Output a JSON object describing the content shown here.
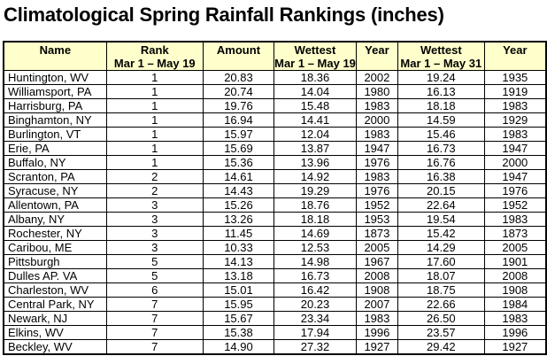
{
  "title": "Climatological Spring Rainfall Rankings (inches)",
  "colors": {
    "header_bg": "#FFFFCC",
    "border": "#000000",
    "background": "#FFFFFF",
    "text": "#000000"
  },
  "chart_data": {
    "type": "table",
    "title": "Climatological Spring Rainfall Rankings (inches)",
    "columns": [
      {
        "label": "Name",
        "sublabel": ""
      },
      {
        "label": "Rank",
        "sublabel": "Mar 1 – May 19"
      },
      {
        "label": "Amount",
        "sublabel": ""
      },
      {
        "label": "Wettest",
        "sublabel": "Mar 1 – May 19"
      },
      {
        "label": "Year",
        "sublabel": ""
      },
      {
        "label": "Wettest",
        "sublabel": "Mar 1 – May 31"
      },
      {
        "label": "Year",
        "sublabel": ""
      }
    ],
    "rows": [
      [
        "Huntington, WV",
        "1",
        "20.83",
        "18.36",
        "2002",
        "19.24",
        "1935"
      ],
      [
        "Williamsport, PA",
        "1",
        "20.74",
        "14.04",
        "1980",
        "16.13",
        "1919"
      ],
      [
        "Harrisburg, PA",
        "1",
        "19.76",
        "15.48",
        "1983",
        "18.18",
        "1983"
      ],
      [
        "Binghamton, NY",
        "1",
        "16.94",
        "14.41",
        "2000",
        "14.59",
        "1929"
      ],
      [
        "Burlington, VT",
        "1",
        "15.97",
        "12.04",
        "1983",
        "15.46",
        "1983"
      ],
      [
        "Erie, PA",
        "1",
        "15.69",
        "13.87",
        "1947",
        "16.73",
        "1947"
      ],
      [
        "Buffalo, NY",
        "1",
        "15.36",
        "13.96",
        "1976",
        "16.76",
        "2000"
      ],
      [
        "Scranton, PA",
        "2",
        "14.61",
        "14.92",
        "1983",
        "16.38",
        "1947"
      ],
      [
        "Syracuse, NY",
        "2",
        "14.43",
        "19.29",
        "1976",
        "20.15",
        "1976"
      ],
      [
        "Allentown, PA",
        "3",
        "15.26",
        "18.76",
        "1952",
        "22.64",
        "1952"
      ],
      [
        "Albany, NY",
        "3",
        "13.26",
        "18.18",
        "1953",
        "19.54",
        "1983"
      ],
      [
        "Rochester, NY",
        "3",
        "11.45",
        "14.69",
        "1873",
        "15.42",
        "1873"
      ],
      [
        "Caribou, ME",
        "3",
        "10.33",
        "12.53",
        "2005",
        "14.29",
        "2005"
      ],
      [
        "Pittsburgh",
        "5",
        "14.13",
        "14.98",
        "1967",
        "17.60",
        "1901"
      ],
      [
        "Dulles AP. VA",
        "5",
        "13.18",
        "16.73",
        "2008",
        "18.07",
        "2008"
      ],
      [
        "Charleston, WV",
        "6",
        "15.01",
        "16.42",
        "1908",
        "18.75",
        "1908"
      ],
      [
        "Central Park, NY",
        "7",
        "15.95",
        "20.23",
        "2007",
        "22.66",
        "1984"
      ],
      [
        "Newark, NJ",
        "7",
        "15.67",
        "23.34",
        "1983",
        "26.50",
        "1983"
      ],
      [
        "Elkins, WV",
        "7",
        "15.38",
        "17.94",
        "1996",
        "23.57",
        "1996"
      ],
      [
        "Beckley, WV",
        "7",
        "14.90",
        "27.32",
        "1927",
        "29.42",
        "1927"
      ]
    ]
  }
}
